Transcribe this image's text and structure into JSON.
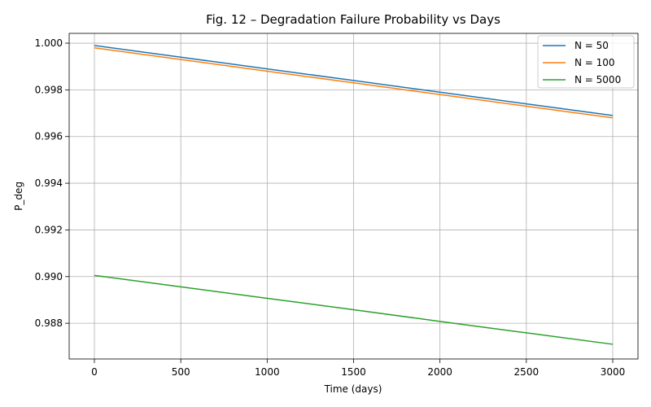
{
  "chart_data": {
    "type": "line",
    "title": "Fig. 12 – Degradation Failure Probability vs Days",
    "xlabel": "Time (days)",
    "ylabel": "P_deg",
    "x": [
      0,
      500,
      1000,
      1500,
      2000,
      2500,
      3000
    ],
    "series": [
      {
        "name": "N = 50",
        "color": "#1f77b4",
        "values": [
          0.9999,
          0.9994,
          0.9989,
          0.9984,
          0.9979,
          0.9974,
          0.9969
        ]
      },
      {
        "name": "N = 100",
        "color": "#ff7f0e",
        "values": [
          0.9998,
          0.9993,
          0.9988,
          0.9983,
          0.9978,
          0.9973,
          0.9968
        ]
      },
      {
        "name": "N = 5000",
        "color": "#2ca02c",
        "values": [
          0.99005,
          0.98956,
          0.98907,
          0.98858,
          0.98808,
          0.98759,
          0.9871
        ]
      }
    ],
    "xlim": [
      -146,
      3146
    ],
    "ylim": [
      0.98647,
      1.00042
    ],
    "xticks": [
      "0",
      "500",
      "1000",
      "1500",
      "2000",
      "2500",
      "3000"
    ],
    "yticks": [
      "0.988",
      "0.990",
      "0.992",
      "0.994",
      "0.996",
      "0.998",
      "1.000"
    ],
    "grid": true,
    "legend": "top-right"
  }
}
